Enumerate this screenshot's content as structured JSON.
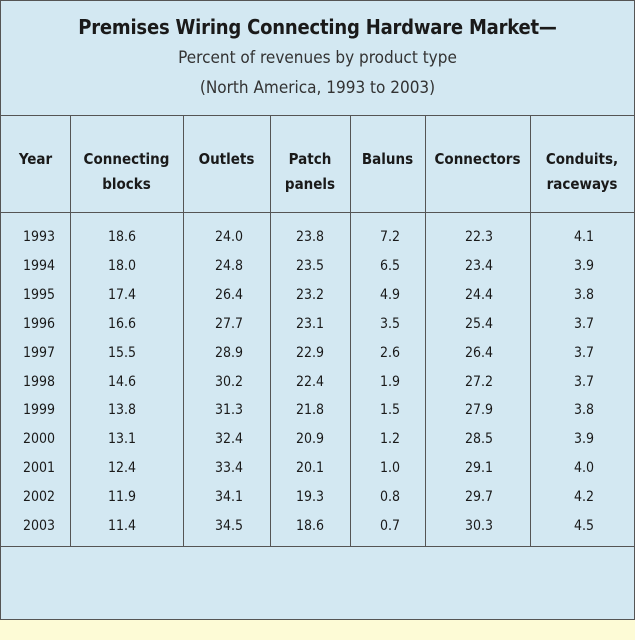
{
  "chart_data": {
    "type": "table",
    "title": "Premises Wiring Connecting Hardware Market—",
    "subtitle_lines": [
      "Percent of revenues by product type",
      "(North America, 1993 to 2003)"
    ],
    "columns": [
      "Year",
      "Connecting blocks",
      "Outlets",
      "Patch panels",
      "Baluns",
      "Connectors",
      "Conduits, raceways"
    ],
    "header_lines": [
      [
        "Year"
      ],
      [
        "Connecting",
        "blocks"
      ],
      [
        "Outlets"
      ],
      [
        "Patch",
        "panels"
      ],
      [
        "Baluns"
      ],
      [
        "Connectors"
      ],
      [
        "Conduits,",
        "raceways"
      ]
    ],
    "rows": [
      [
        "1993",
        "18.6",
        "24.0",
        "23.8",
        "7.2",
        "22.3",
        "4.1"
      ],
      [
        "1994",
        "18.0",
        "24.8",
        "23.5",
        "6.5",
        "23.4",
        "3.9"
      ],
      [
        "1995",
        "17.4",
        "26.4",
        "23.2",
        "4.9",
        "24.4",
        "3.8"
      ],
      [
        "1996",
        "16.6",
        "27.7",
        "23.1",
        "3.5",
        "25.4",
        "3.7"
      ],
      [
        "1997",
        "15.5",
        "28.9",
        "22.9",
        "2.6",
        "26.4",
        "3.7"
      ],
      [
        "1998",
        "14.6",
        "30.2",
        "22.4",
        "1.9",
        "27.2",
        "3.7"
      ],
      [
        "1999",
        "13.8",
        "31.3",
        "21.8",
        "1.5",
        "27.9",
        "3.8"
      ],
      [
        "2000",
        "13.1",
        "32.4",
        "20.9",
        "1.2",
        "28.5",
        "3.9"
      ],
      [
        "2001",
        "12.4",
        "33.4",
        "20.1",
        "1.0",
        "29.1",
        "4.0"
      ],
      [
        "2002",
        "11.9",
        "34.1",
        "19.3",
        "0.8",
        "29.7",
        "4.2"
      ],
      [
        "2003",
        "11.4",
        "34.5",
        "18.6",
        "0.7",
        "30.3",
        "4.5"
      ]
    ]
  },
  "colors": {
    "panel_background": "#d3e8f2",
    "page_background": "#fdfbd6",
    "rule": "#555555"
  }
}
